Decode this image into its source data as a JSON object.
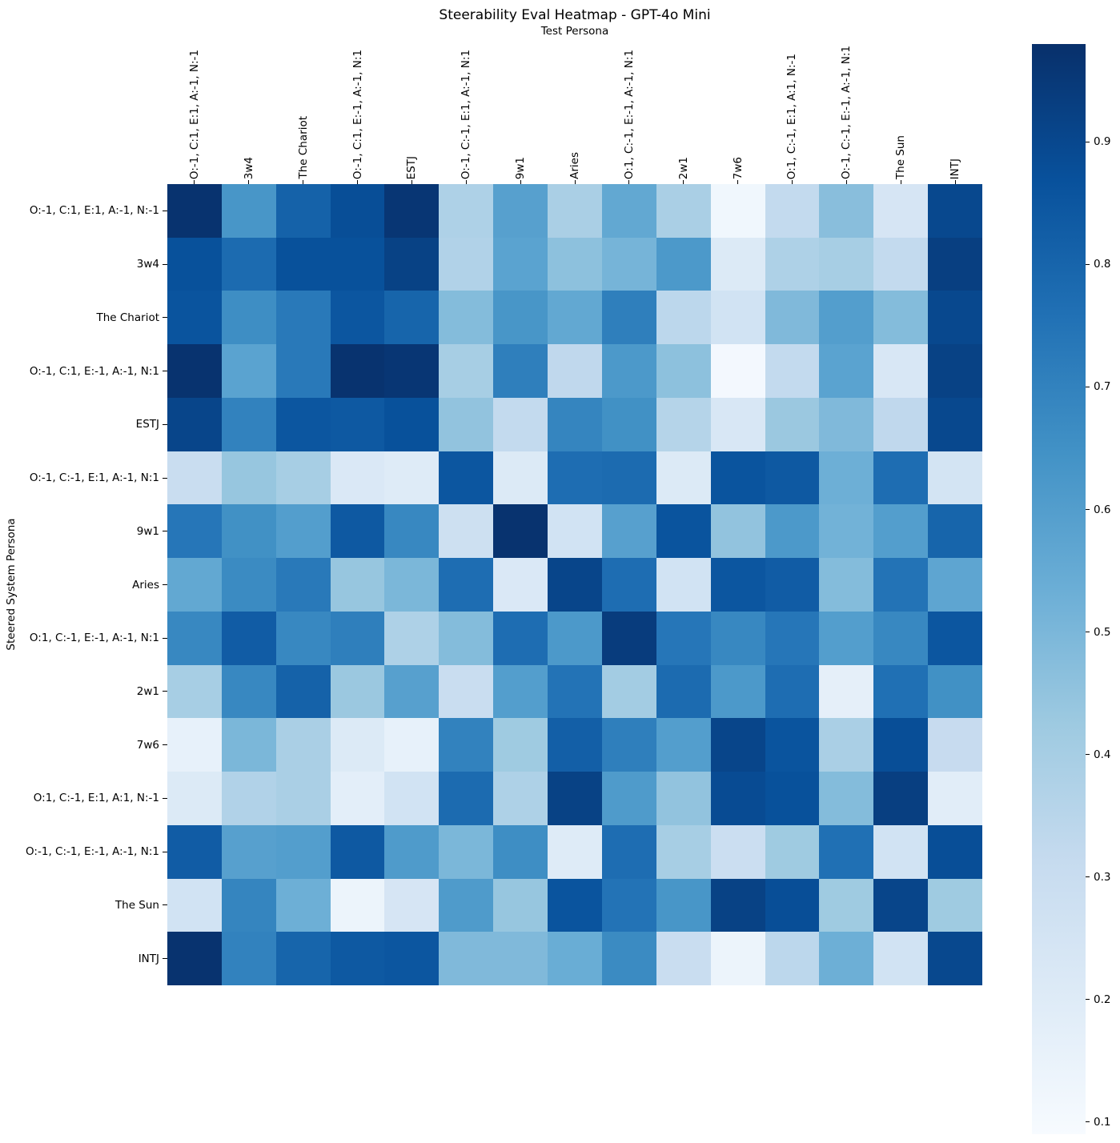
{
  "title": "Steerability Eval Heatmap - GPT-4o Mini",
  "x_axis_label": "Test Persona",
  "y_axis_label": "Steered System Persona",
  "colors": {
    "background": "#ffffff",
    "text": "#000000",
    "colormap_name": "Blues",
    "colormap_anchors": [
      "#f7fbff",
      "#deebf7",
      "#c6dbef",
      "#9ecae1",
      "#6baed6",
      "#4292c6",
      "#2171b5",
      "#08519c",
      "#08306b"
    ]
  },
  "chart_data": {
    "type": "heatmap",
    "title": "Steerability Eval Heatmap - GPT-4o Mini",
    "xlabel": "Test Persona",
    "ylabel": "Steered System Persona",
    "colormap": "Blues",
    "vmin": 0.09,
    "vmax": 0.98,
    "colorbar_ticks": [
      0.9,
      0.8,
      0.7,
      0.6,
      0.5,
      0.4,
      0.3,
      0.2,
      0.1
    ],
    "x_categories": [
      "O:-1, C:1, E:1, A:-1, N:-1",
      "3w4",
      "The Chariot",
      "O:-1, C:1, E:-1, A:-1, N:1",
      "ESTJ",
      "O:-1, C:-1, E:1, A:-1, N:1",
      "9w1",
      "Aries",
      "O:1, C:-1, E:-1, A:-1, N:1",
      "2w1",
      "7w6",
      "O:1, C:-1, E:1, A:1, N:-1",
      "O:-1, C:-1, E:-1, A:-1, N:1",
      "The Sun",
      "INTJ"
    ],
    "y_categories": [
      "O:-1, C:1, E:1, A:-1, N:-1",
      "3w4",
      "The Chariot",
      "O:-1, C:1, E:-1, A:-1, N:1",
      "ESTJ",
      "O:-1, C:-1, E:1, A:-1, N:1",
      "9w1",
      "Aries",
      "O:1, C:-1, E:-1, A:-1, N:1",
      "2w1",
      "7w6",
      "O:1, C:-1, E:1, A:1, N:-1",
      "O:-1, C:-1, E:-1, A:-1, N:1",
      "The Sun",
      "INTJ"
    ],
    "values": [
      [
        0.97,
        0.63,
        0.81,
        0.88,
        0.96,
        0.38,
        0.59,
        0.39,
        0.56,
        0.39,
        0.12,
        0.32,
        0.47,
        0.24,
        0.9
      ],
      [
        0.87,
        0.78,
        0.87,
        0.87,
        0.92,
        0.37,
        0.58,
        0.46,
        0.51,
        0.62,
        0.21,
        0.38,
        0.4,
        0.32,
        0.93
      ],
      [
        0.86,
        0.66,
        0.73,
        0.85,
        0.8,
        0.48,
        0.63,
        0.56,
        0.71,
        0.34,
        0.26,
        0.49,
        0.6,
        0.48,
        0.9
      ],
      [
        0.97,
        0.58,
        0.73,
        0.97,
        0.96,
        0.4,
        0.71,
        0.33,
        0.62,
        0.46,
        0.11,
        0.32,
        0.58,
        0.23,
        0.92
      ],
      [
        0.91,
        0.7,
        0.85,
        0.84,
        0.87,
        0.45,
        0.32,
        0.69,
        0.65,
        0.36,
        0.23,
        0.43,
        0.49,
        0.33,
        0.9
      ],
      [
        0.3,
        0.44,
        0.4,
        0.22,
        0.2,
        0.85,
        0.21,
        0.77,
        0.78,
        0.21,
        0.86,
        0.84,
        0.53,
        0.77,
        0.25
      ],
      [
        0.74,
        0.65,
        0.6,
        0.84,
        0.68,
        0.28,
        0.97,
        0.26,
        0.59,
        0.86,
        0.45,
        0.62,
        0.52,
        0.6,
        0.8
      ],
      [
        0.56,
        0.67,
        0.73,
        0.44,
        0.5,
        0.77,
        0.22,
        0.91,
        0.77,
        0.26,
        0.85,
        0.83,
        0.48,
        0.75,
        0.57
      ],
      [
        0.68,
        0.83,
        0.68,
        0.71,
        0.38,
        0.48,
        0.77,
        0.62,
        0.94,
        0.74,
        0.68,
        0.74,
        0.6,
        0.68,
        0.85
      ],
      [
        0.4,
        0.68,
        0.81,
        0.43,
        0.59,
        0.3,
        0.6,
        0.75,
        0.41,
        0.78,
        0.62,
        0.77,
        0.17,
        0.76,
        0.65
      ],
      [
        0.16,
        0.5,
        0.39,
        0.21,
        0.16,
        0.7,
        0.42,
        0.82,
        0.71,
        0.6,
        0.91,
        0.86,
        0.39,
        0.88,
        0.31
      ],
      [
        0.21,
        0.37,
        0.39,
        0.18,
        0.26,
        0.78,
        0.38,
        0.92,
        0.61,
        0.45,
        0.89,
        0.87,
        0.48,
        0.93,
        0.19
      ],
      [
        0.83,
        0.59,
        0.6,
        0.84,
        0.61,
        0.5,
        0.66,
        0.2,
        0.77,
        0.4,
        0.29,
        0.42,
        0.76,
        0.26,
        0.88
      ],
      [
        0.26,
        0.69,
        0.53,
        0.14,
        0.24,
        0.61,
        0.44,
        0.86,
        0.75,
        0.63,
        0.92,
        0.88,
        0.42,
        0.91,
        0.42
      ],
      [
        0.97,
        0.7,
        0.8,
        0.84,
        0.85,
        0.49,
        0.49,
        0.54,
        0.67,
        0.3,
        0.14,
        0.34,
        0.53,
        0.26,
        0.9
      ]
    ]
  }
}
